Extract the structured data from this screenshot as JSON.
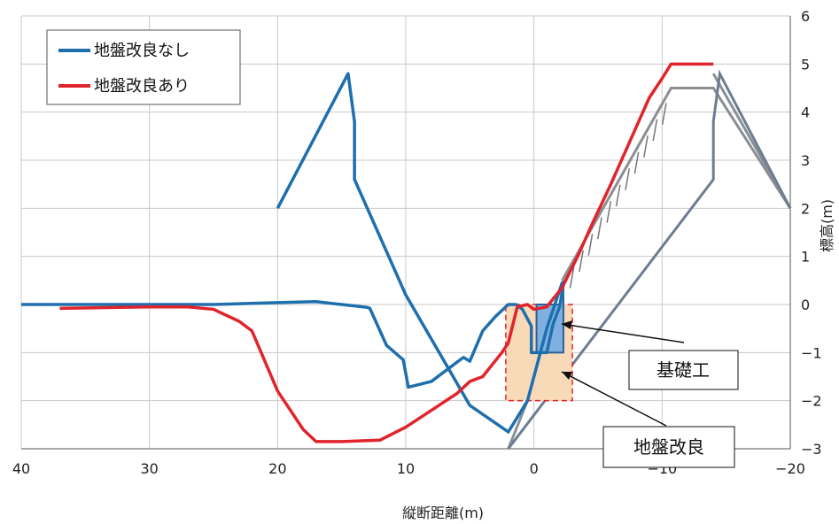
{
  "chart_data": {
    "type": "line",
    "xlabel": "縦断距離(m)",
    "ylabel": "標高(m)",
    "xlim": [
      40,
      -20
    ],
    "ylim": [
      -3,
      6
    ],
    "xticks": [
      40,
      30,
      20,
      10,
      0,
      -10,
      -20
    ],
    "xtick_labels": [
      "40",
      "30",
      "20",
      "10",
      "0",
      "−10",
      "−20"
    ],
    "yticks": [
      -3,
      -2,
      -1,
      0,
      1,
      2,
      3,
      4,
      5,
      6
    ],
    "grid": true,
    "legend_position": "top-left",
    "series": [
      {
        "name": "地盤改良なし",
        "color": "#1f6fad",
        "x": [
          40,
          30,
          25,
          20,
          17,
          15,
          13,
          12.8,
          11.5,
          10.2,
          9.8,
          8,
          5.5,
          5,
          4,
          3,
          2,
          1.4,
          0.9,
          0.2,
          0.2,
          -1,
          -1.5,
          -2,
          -2.2,
          -2.2,
          -1,
          0.5,
          0.5,
          2,
          5,
          10,
          14,
          14,
          14.5,
          20,
          20
        ],
        "y": [
          0,
          0,
          0,
          0.04,
          0.06,
          0,
          -0.06,
          -0.08,
          -0.85,
          -1.15,
          -1.72,
          -1.6,
          -1.1,
          -1.18,
          -0.55,
          -0.25,
          0,
          0,
          -0.1,
          -0.45,
          -1.0,
          -1.0,
          -0.4,
          -0.05,
          0.25,
          0.45,
          -0.5,
          -2.0,
          -2.0,
          -2.65,
          -2.1,
          0.2,
          2.6,
          3.8,
          4.8,
          2.0,
          2.0
        ]
      },
      {
        "name": "地盤改良あり",
        "color": "#e0242c",
        "x": [
          37,
          30,
          27,
          25,
          23,
          22,
          20,
          18,
          17,
          15,
          12,
          10,
          8,
          6,
          5,
          4,
          2.5,
          2,
          1.3,
          0.5,
          0,
          -1,
          -2.2,
          -3.5,
          -4.5,
          -6,
          -7,
          -8,
          -9,
          -10,
          -10.7,
          -11,
          -12,
          -13,
          -14
        ],
        "y": [
          -0.08,
          -0.05,
          -0.05,
          -0.1,
          -0.35,
          -0.55,
          -1.8,
          -2.6,
          -2.85,
          -2.85,
          -2.82,
          -2.55,
          -2.2,
          -1.85,
          -1.6,
          -1.5,
          -1.0,
          -0.8,
          -0.05,
          0,
          -0.1,
          -0.05,
          0.35,
          1.05,
          1.65,
          2.5,
          3.1,
          3.7,
          4.3,
          4.7,
          5.0,
          5.0,
          5.0,
          5.0,
          5.0
        ]
      }
    ],
    "annotations": [
      "基礎工",
      "地盤改良"
    ]
  },
  "colors": {
    "blue": "#1f6fad",
    "red": "#e0242c",
    "gray": "#8a8f95",
    "foundation_fill": "#7fb0e0",
    "improvement_fill": "#f8d9b8",
    "improvement_border": "#e0242c"
  }
}
